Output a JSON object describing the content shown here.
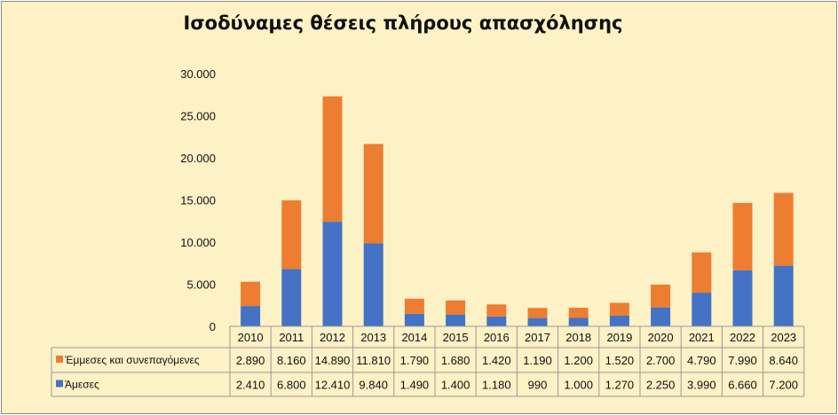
{
  "colors": {
    "emmeses": "#ED7D31",
    "ameses": "#4472C4",
    "background": "#FDF1C6"
  },
  "chart_data": {
    "type": "bar",
    "stacked": true,
    "title": "Ισοδύναμες θέσεις πλήρους απασχόλησης",
    "categories": [
      "2010",
      "2011",
      "2012",
      "2013",
      "2014",
      "2015",
      "2016",
      "2017",
      "2018",
      "2019",
      "2020",
      "2021",
      "2022",
      "2023"
    ],
    "series": [
      {
        "name": "Άμεσες",
        "color": "#4472C4",
        "values": [
          2410,
          6800,
          12410,
          9840,
          1490,
          1400,
          1180,
          990,
          1000,
          1270,
          2250,
          3990,
          6660,
          7200
        ],
        "labels": [
          "2.410",
          "6.800",
          "12.410",
          "9.840",
          "1.490",
          "1.400",
          "1.180",
          "990",
          "1.000",
          "1.270",
          "2.250",
          "3.990",
          "6.660",
          "7.200"
        ]
      },
      {
        "name": "Έμμεσες και συνεπαγόμενες",
        "color": "#ED7D31",
        "values": [
          2890,
          8160,
          14890,
          11810,
          1790,
          1680,
          1420,
          1190,
          1200,
          1520,
          2700,
          4790,
          7990,
          8640
        ],
        "labels": [
          "2.890",
          "8.160",
          "14.890",
          "11.810",
          "1.790",
          "1.680",
          "1.420",
          "1.190",
          "1.200",
          "1.520",
          "2.700",
          "4.790",
          "7.990",
          "8.640"
        ]
      }
    ],
    "ylim": [
      0,
      30000
    ],
    "yticks": [
      0,
      5000,
      10000,
      15000,
      20000,
      25000,
      30000
    ],
    "ytick_labels": [
      "0",
      "5.000",
      "10.000",
      "15.000",
      "20.000",
      "25.000",
      "30.000"
    ],
    "grid": false,
    "legend": "data-table-left"
  }
}
